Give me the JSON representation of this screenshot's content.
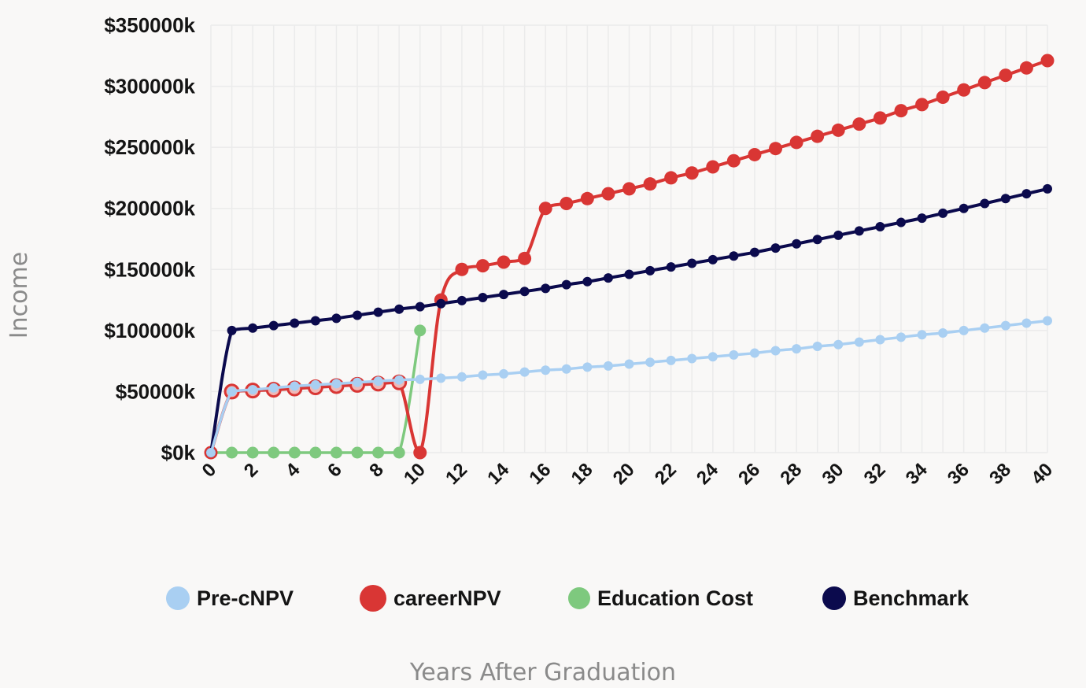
{
  "chart_data": {
    "type": "line",
    "xlabel": "Years After Graduation",
    "ylabel": "Income",
    "xlim": [
      0,
      40
    ],
    "ylim": [
      0,
      350000
    ],
    "x_ticks": [
      "0",
      "2",
      "4",
      "6",
      "8",
      "10",
      "12",
      "14",
      "16",
      "18",
      "20",
      "22",
      "24",
      "26",
      "28",
      "30",
      "32",
      "34",
      "36",
      "38",
      "40"
    ],
    "y_ticks": [
      "$0k",
      "$50000k",
      "$100000k",
      "$150000k",
      "$200000k",
      "$250000k",
      "$300000k",
      "$350000k"
    ],
    "x": [
      0,
      1,
      2,
      3,
      4,
      5,
      6,
      7,
      8,
      9,
      10,
      11,
      12,
      13,
      14,
      15,
      16,
      17,
      18,
      19,
      20,
      21,
      22,
      23,
      24,
      25,
      26,
      27,
      28,
      29,
      30,
      31,
      32,
      33,
      34,
      35,
      36,
      37,
      38,
      39,
      40
    ],
    "grid": true,
    "legend_position": "bottom",
    "series": [
      {
        "name": "Pre-cNPV",
        "color": "#a9cff2",
        "values": [
          0,
          50000,
          51500,
          53000,
          54500,
          55500,
          56500,
          57500,
          58500,
          59500,
          60000,
          61000,
          62000,
          63500,
          64500,
          66000,
          67500,
          68500,
          70000,
          71000,
          72500,
          74000,
          75500,
          77000,
          78500,
          80000,
          81500,
          83500,
          85000,
          87000,
          88500,
          90500,
          92500,
          94500,
          96500,
          98000,
          100000,
          102000,
          104000,
          106000,
          108000
        ]
      },
      {
        "name": "careerNPV",
        "color": "#d93634",
        "values": [
          0,
          50000,
          50800,
          51500,
          52500,
          53500,
          54500,
          55500,
          56500,
          57500,
          0,
          125000,
          150000,
          153000,
          156000,
          159000,
          200000,
          204000,
          208000,
          212000,
          216000,
          220000,
          225000,
          229000,
          234000,
          239000,
          244000,
          249000,
          254000,
          259000,
          264000,
          269000,
          274000,
          280000,
          285000,
          291000,
          297000,
          303000,
          309000,
          315000,
          321000
        ]
      },
      {
        "name": "Education Cost",
        "color": "#7ec97e",
        "values": [
          0,
          0,
          0,
          0,
          0,
          0,
          0,
          0,
          0,
          0,
          100000,
          null,
          null,
          null,
          null,
          null,
          null,
          null,
          null,
          null,
          null,
          null,
          null,
          null,
          null,
          null,
          null,
          null,
          null,
          null,
          null,
          null,
          null,
          null,
          null,
          null,
          null,
          null,
          null,
          null,
          null
        ]
      },
      {
        "name": "Benchmark",
        "color": "#0b0a4d",
        "values": [
          0,
          100000,
          102000,
          104000,
          106000,
          108000,
          110000,
          112500,
          115000,
          117500,
          119500,
          122000,
          124500,
          127000,
          129500,
          132000,
          134500,
          137500,
          140000,
          143000,
          146000,
          149000,
          152000,
          155000,
          158000,
          161000,
          164000,
          167500,
          171000,
          174500,
          178000,
          181500,
          185000,
          188500,
          192000,
          196000,
          200000,
          204000,
          208000,
          212000,
          216000
        ]
      }
    ]
  }
}
